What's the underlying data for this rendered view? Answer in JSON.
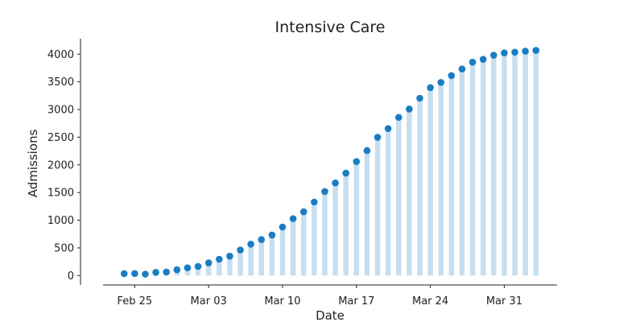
{
  "chart_data": {
    "type": "bar",
    "title": "Intensive Care",
    "xlabel": "Date",
    "ylabel": "Admissions",
    "ylim": [
      -170,
      4280
    ],
    "xlim": [
      "2020-02-22",
      "2020-04-05"
    ],
    "y_ticks": [
      0,
      500,
      1000,
      1500,
      2000,
      2500,
      3000,
      3500,
      4000
    ],
    "y_tick_labels": [
      "0",
      "500",
      "1000",
      "1500",
      "2000",
      "2500",
      "3000",
      "3500",
      "4000"
    ],
    "x_ticks": [
      "2020-02-25",
      "2020-03-03",
      "2020-03-10",
      "2020-03-17",
      "2020-03-24",
      "2020-03-31"
    ],
    "x_tick_labels": [
      "Feb 25",
      "Mar 03",
      "Mar 10",
      "Mar 17",
      "Mar 24",
      "Mar 31"
    ],
    "grid": false,
    "legend": "none",
    "bar_color": "#c6dff0",
    "point_color": "#1a7dc4",
    "x": [
      "2020-02-24",
      "2020-02-25",
      "2020-02-26",
      "2020-02-27",
      "2020-02-28",
      "2020-02-29",
      "2020-03-01",
      "2020-03-02",
      "2020-03-03",
      "2020-03-04",
      "2020-03-05",
      "2020-03-06",
      "2020-03-07",
      "2020-03-08",
      "2020-03-09",
      "2020-03-10",
      "2020-03-11",
      "2020-03-12",
      "2020-03-13",
      "2020-03-14",
      "2020-03-15",
      "2020-03-16",
      "2020-03-17",
      "2020-03-18",
      "2020-03-19",
      "2020-03-20",
      "2020-03-21",
      "2020-03-22",
      "2020-03-23",
      "2020-03-24",
      "2020-03-25",
      "2020-03-26",
      "2020-03-27",
      "2020-03-28",
      "2020-03-29",
      "2020-03-30",
      "2020-03-31",
      "2020-04-01",
      "2020-04-02",
      "2020-04-03"
    ],
    "values": [
      35,
      36,
      26,
      58,
      64,
      105,
      140,
      166,
      229,
      295,
      351,
      462,
      567,
      650,
      733,
      877,
      1028,
      1153,
      1328,
      1518,
      1672,
      1851,
      2060,
      2257,
      2498,
      2655,
      2857,
      3009,
      3204,
      3396,
      3489,
      3612,
      3732,
      3856,
      3906,
      3981,
      4023,
      4035,
      4053,
      4068
    ]
  }
}
